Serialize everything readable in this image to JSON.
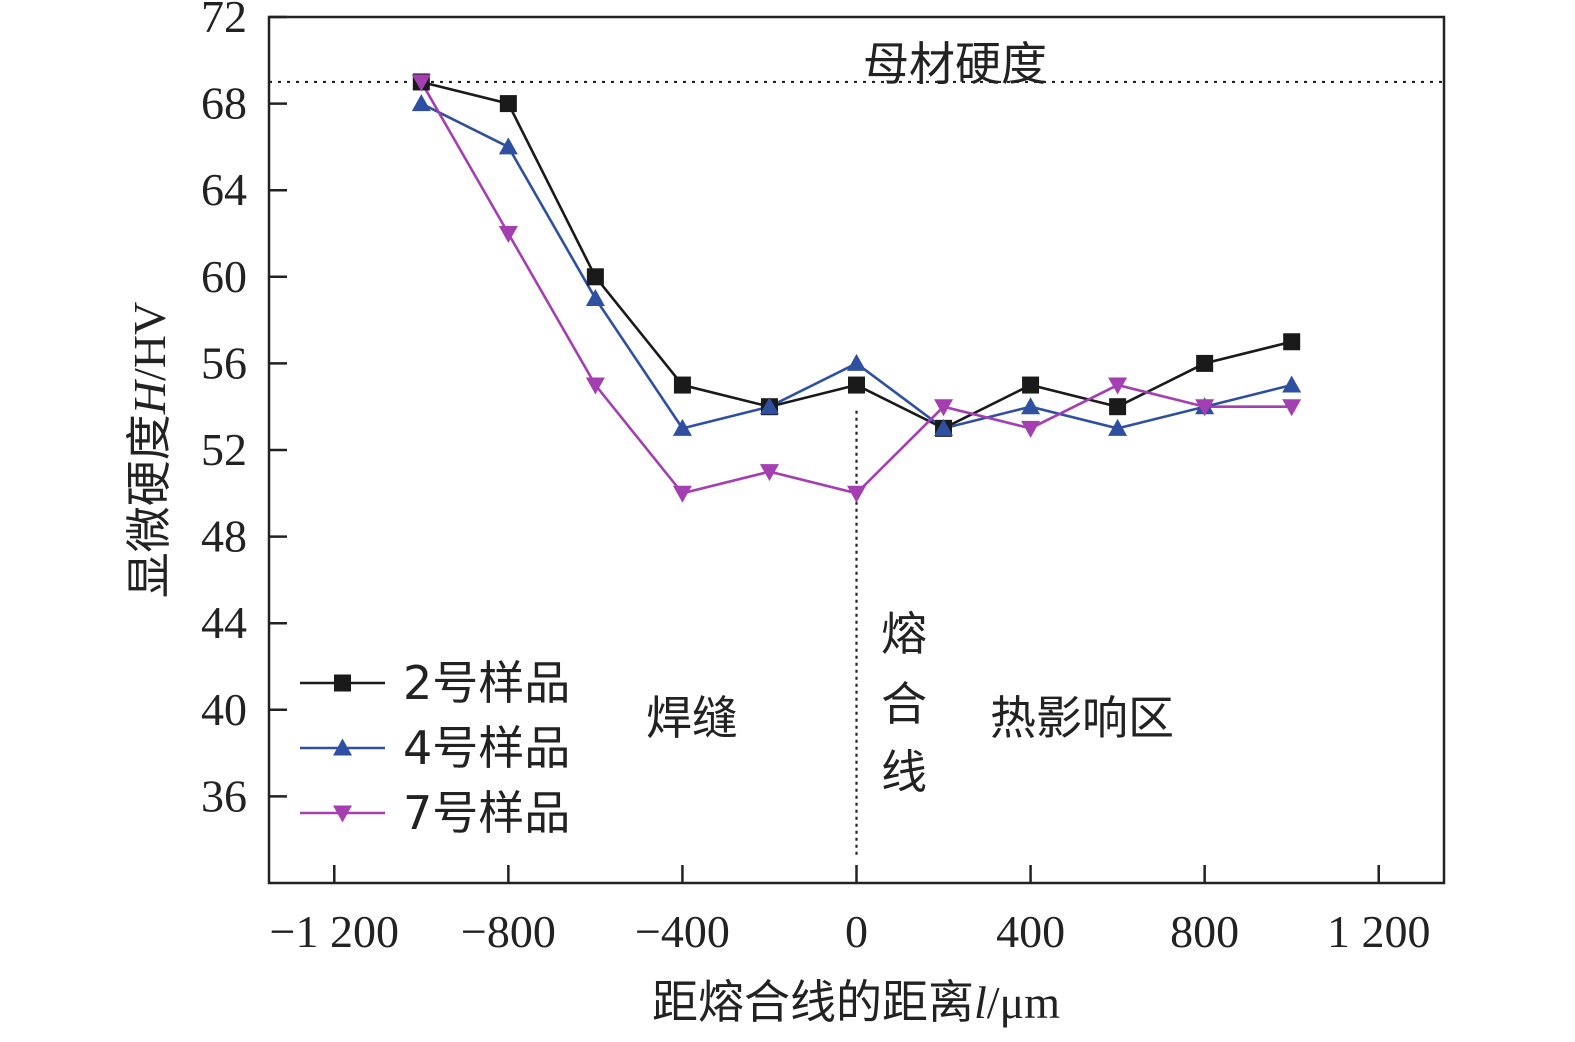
{
  "chart_data": {
    "type": "line",
    "title": "",
    "xlabel": "距熔合线的距离",
    "xlabel_symbol": "l",
    "xlabel_unit": "/μm",
    "ylabel": "显微硬度",
    "ylabel_symbol": "H",
    "ylabel_unit": "/HV",
    "xlim": [
      -1350,
      1350
    ],
    "ylim": [
      32,
      72
    ],
    "x_ticks": [
      -1200,
      -800,
      -400,
      0,
      400,
      800,
      1200
    ],
    "x_tick_labels": [
      "−1 200",
      "−800",
      "−400",
      "0",
      "400",
      "800",
      "1 200"
    ],
    "y_ticks": [
      36,
      40,
      44,
      48,
      52,
      56,
      60,
      64,
      68,
      72
    ],
    "y_tick_labels": [
      "36",
      "40",
      "44",
      "48",
      "52",
      "56",
      "60",
      "64",
      "68",
      "72"
    ],
    "x": [
      -1000,
      -800,
      -600,
      -400,
      -200,
      0,
      200,
      400,
      600,
      800,
      1000
    ],
    "series": [
      {
        "name": "2号样品",
        "color": "#1a1a1a",
        "marker": "square",
        "values": [
          69,
          68,
          60,
          55,
          54,
          55,
          53,
          55,
          54,
          56,
          57
        ]
      },
      {
        "name": "4号样品",
        "color": "#2f4fa0",
        "marker": "triangle-up",
        "values": [
          68,
          66,
          59,
          53,
          54,
          56,
          53,
          54,
          53,
          54,
          55
        ]
      },
      {
        "name": "7号样品",
        "color": "#a33fb0",
        "marker": "triangle-down",
        "values": [
          69,
          62,
          55,
          50,
          51,
          50,
          54,
          53,
          55,
          54,
          54
        ]
      }
    ],
    "reference_line": {
      "y": 69,
      "label": "母材硬度",
      "style": "dotted"
    },
    "fusion_line": {
      "x": 0,
      "label_chars": [
        "熔",
        "合",
        "线"
      ],
      "style": "dotted"
    },
    "region_labels": {
      "weld": "焊缝",
      "haz": "热影响区"
    },
    "legend_position": "bottom-left",
    "grid": false
  }
}
